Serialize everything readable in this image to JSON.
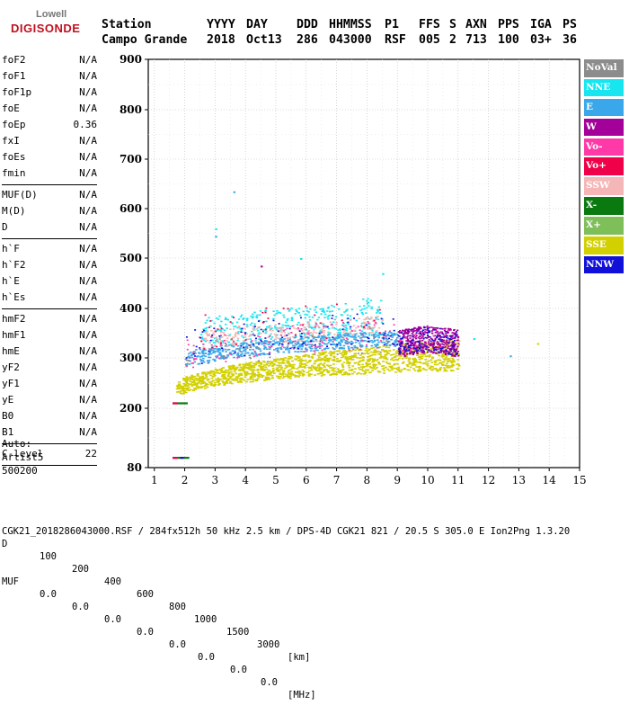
{
  "logo": {
    "line1": "Lowell",
    "line2": "DIGISONDE"
  },
  "header": {
    "labels": [
      "Station",
      "YYYY",
      "DAY",
      "DDD",
      "HHMMSS",
      "P1",
      "FFS",
      "S",
      "AXN",
      "PPS",
      "IGA",
      "PS"
    ],
    "values": [
      "Campo Grande",
      "2018",
      "Oct13",
      "286",
      "043000",
      "RSF",
      "005",
      "2",
      "713",
      "100",
      "03+",
      "36"
    ]
  },
  "parameters": {
    "group1": [
      {
        "name": "foF2",
        "value": "N/A"
      },
      {
        "name": "foF1",
        "value": "N/A"
      },
      {
        "name": "foF1p",
        "value": "N/A"
      },
      {
        "name": "foE",
        "value": "N/A"
      },
      {
        "name": "foEp",
        "value": "0.36"
      },
      {
        "name": "fxI",
        "value": "N/A"
      },
      {
        "name": "foEs",
        "value": "N/A"
      },
      {
        "name": "fmin",
        "value": "N/A"
      }
    ],
    "group2": [
      {
        "name": "MUF(D)",
        "value": "N/A"
      },
      {
        "name": "M(D)",
        "value": "N/A"
      },
      {
        "name": "D",
        "value": "N/A"
      }
    ],
    "group3": [
      {
        "name": "h`F",
        "value": "N/A"
      },
      {
        "name": "h`F2",
        "value": "N/A"
      },
      {
        "name": "h`E",
        "value": "N/A"
      },
      {
        "name": "h`Es",
        "value": "N/A"
      }
    ],
    "group4": [
      {
        "name": "hmF2",
        "value": "N/A"
      },
      {
        "name": "hmF1",
        "value": "N/A"
      },
      {
        "name": "hmE",
        "value": "N/A"
      },
      {
        "name": "yF2",
        "value": "N/A"
      },
      {
        "name": "yF1",
        "value": "N/A"
      },
      {
        "name": "yE",
        "value": "N/A"
      },
      {
        "name": "B0",
        "value": "N/A"
      },
      {
        "name": "B1",
        "value": "N/A"
      }
    ],
    "group5": [
      {
        "name": "C-level",
        "value": "22"
      }
    ]
  },
  "auto": {
    "line1": "Auto:",
    "line2": "Artist5",
    "line3": "500200"
  },
  "legend": [
    {
      "label": "NoVal",
      "color": "#8c8c8c"
    },
    {
      "label": "NNE",
      "color": "#17e6f0"
    },
    {
      "label": "E",
      "color": "#3aa7ea"
    },
    {
      "label": "W",
      "color": "#a4009a"
    },
    {
      "label": "Vo-",
      "color": "#ff3aa8"
    },
    {
      "label": "Vo+",
      "color": "#f00048"
    },
    {
      "label": "SSW",
      "color": "#f4b6b6"
    },
    {
      "label": "X-",
      "color": "#0a7a10"
    },
    {
      "label": "X+",
      "color": "#7fbf5a"
    },
    {
      "label": "SSE",
      "color": "#d2d000"
    },
    {
      "label": "NNW",
      "color": "#1010d8"
    }
  ],
  "footer": {
    "d_label": "D",
    "d_values": [
      "100",
      "200",
      "400",
      "600",
      "800",
      "1000",
      "1500",
      "3000"
    ],
    "d_unit": "[km]",
    "muf_label": "MUF",
    "muf_values": [
      "0.0",
      "0.0",
      "0.0",
      "0.0",
      "0.0",
      "0.0",
      "0.0",
      "0.0"
    ],
    "muf_unit": "[MHz]",
    "info": "CGK21_2018286043000.RSF / 284fx512h 50 kHz 2.5 km / DPS-4D CGK21 821 / 20.5 S 305.0 E Ion2Png 1.3.20"
  },
  "chart_data": {
    "type": "scatter",
    "title": "",
    "xlabel": "",
    "ylabel": "",
    "xlim": [
      0.8,
      15
    ],
    "ylim": [
      80,
      900
    ],
    "x_ticks": [
      1,
      2,
      3,
      4,
      5,
      6,
      7,
      8,
      9,
      10,
      11,
      12,
      13,
      14,
      15
    ],
    "y_ticks": [
      80,
      200,
      300,
      400,
      500,
      600,
      700,
      800,
      900
    ],
    "grid": true,
    "traces": [
      {
        "name": "SSE",
        "note": "lower F trace",
        "points": [
          [
            1.7,
            240
          ],
          [
            2.0,
            248
          ],
          [
            2.5,
            256
          ],
          [
            3.0,
            262
          ],
          [
            3.5,
            268
          ],
          [
            4.0,
            272
          ],
          [
            4.5,
            276
          ],
          [
            5.0,
            280
          ],
          [
            5.5,
            283
          ],
          [
            6.0,
            286
          ],
          [
            6.5,
            289
          ],
          [
            7.0,
            292
          ],
          [
            7.5,
            294
          ],
          [
            8.0,
            296
          ],
          [
            8.5,
            298
          ],
          [
            9.0,
            300
          ],
          [
            9.5,
            302
          ],
          [
            10.0,
            304
          ],
          [
            10.5,
            306
          ],
          [
            11.0,
            308
          ]
        ]
      },
      {
        "name": "E",
        "note": "middle trace",
        "points": [
          [
            2.0,
            300
          ],
          [
            3.0,
            310
          ],
          [
            4.0,
            318
          ],
          [
            5.0,
            325
          ],
          [
            6.0,
            330
          ],
          [
            7.0,
            334
          ],
          [
            8.0,
            338
          ],
          [
            9.0,
            340
          ]
        ]
      },
      {
        "name": "NNE",
        "note": "upper trace",
        "points": [
          [
            2.5,
            350
          ],
          [
            3.5,
            360
          ],
          [
            4.5,
            365
          ],
          [
            5.5,
            368
          ],
          [
            6.5,
            370
          ],
          [
            7.5,
            375
          ],
          [
            8.0,
            385
          ],
          [
            8.5,
            380
          ]
        ]
      },
      {
        "name": "W",
        "note": "high-frequency trace",
        "points": [
          [
            9.0,
            330
          ],
          [
            9.5,
            335
          ],
          [
            10.0,
            340
          ],
          [
            10.5,
            335
          ],
          [
            11.0,
            330
          ]
        ]
      },
      {
        "name": "X-",
        "note": "low band",
        "points": [
          [
            1.65,
            210
          ],
          [
            1.8,
            210
          ],
          [
            2.05,
            210
          ],
          [
            1.7,
            100
          ],
          [
            1.9,
            100
          ],
          [
            2.1,
            100
          ]
        ]
      }
    ]
  }
}
